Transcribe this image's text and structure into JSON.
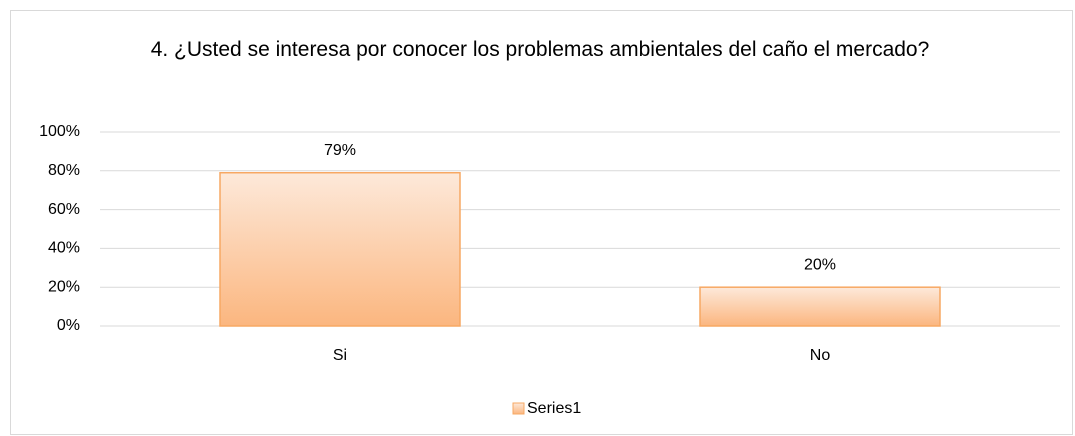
{
  "chart_data": {
    "type": "bar",
    "title": "4. ¿Usted se interesa por conocer los problemas ambientales del caño el mercado?",
    "categories": [
      "Si",
      "No"
    ],
    "series": [
      {
        "name": "Series1",
        "color": "#f7a863",
        "values": [
          79,
          20
        ],
        "value_labels": [
          "79%",
          "20%"
        ]
      }
    ],
    "ylim": [
      0,
      100
    ],
    "yticks": [
      {
        "value": 0,
        "label": "0%"
      },
      {
        "value": 20,
        "label": "20%"
      },
      {
        "value": 40,
        "label": "40%"
      },
      {
        "value": 60,
        "label": "60%"
      },
      {
        "value": 80,
        "label": "80%"
      },
      {
        "value": 100,
        "label": "100%"
      }
    ],
    "grid": true,
    "legend": "bottom"
  }
}
